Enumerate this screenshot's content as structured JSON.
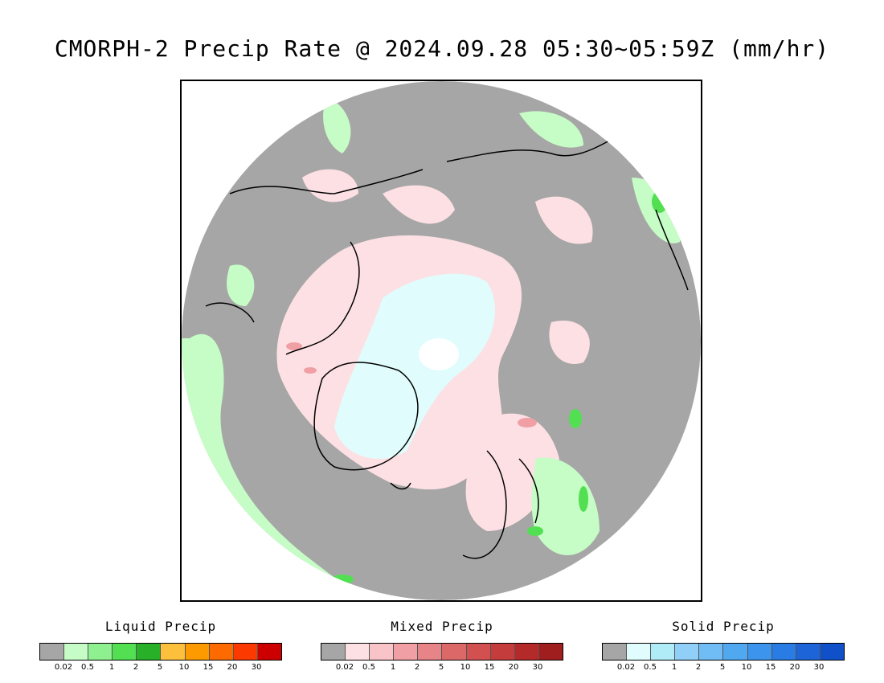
{
  "title": "CMORPH-2 Precip Rate @ 2024.09.28 05:30~05:59Z (mm/hr)",
  "legends": [
    {
      "title": "Liquid Precip",
      "colors": [
        "#a6a6a6",
        "#c6fcc6",
        "#8ef08e",
        "#52e052",
        "#28b028",
        "#fcc03c",
        "#fc9a00",
        "#fc6a00",
        "#fc3a00",
        "#cc0000"
      ],
      "ticks": [
        "0.02",
        "0.5",
        "1",
        "2",
        "5",
        "10",
        "15",
        "20",
        "30"
      ]
    },
    {
      "title": "Mixed Precip",
      "colors": [
        "#a6a6a6",
        "#fde0e4",
        "#f9c4c8",
        "#f0a0a4",
        "#e68488",
        "#dc6868",
        "#d25050",
        "#c43c3c",
        "#b42a2a",
        "#a01e1e"
      ],
      "ticks": [
        "0.02",
        "0.5",
        "1",
        "2",
        "5",
        "10",
        "15",
        "20",
        "30"
      ]
    },
    {
      "title": "Solid Precip",
      "colors": [
        "#a6a6a6",
        "#e0fcfc",
        "#b0ecf8",
        "#90d0f8",
        "#70bcf4",
        "#50a8f0",
        "#3c94ec",
        "#287ce4",
        "#1c64d8",
        "#1050c8"
      ],
      "ticks": [
        "0.02",
        "0.5",
        "1",
        "2",
        "5",
        "10",
        "15",
        "20",
        "30"
      ]
    }
  ]
}
